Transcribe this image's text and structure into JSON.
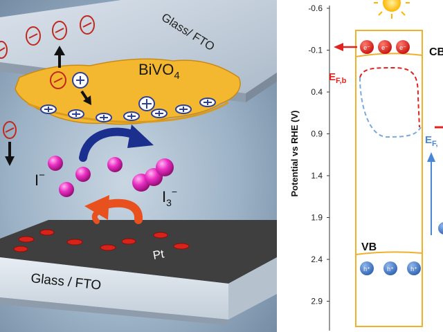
{
  "left_panel": {
    "top_glass_label": "Glass/ FTO",
    "bottom_glass_label": "Glass / FTO",
    "material_label": "BiVO",
    "material_subscript": "4",
    "iodide_label": "I",
    "iodide_charge": "−",
    "triiodide_label": "I",
    "triiodide_subscript": "3",
    "triiodide_charge": "−",
    "counter_electrode_label": "Pt",
    "electron_symbol": "−",
    "hole_symbol": "+"
  },
  "right_panel": {
    "y_axis_label": "Potential vs RHE (V)",
    "y_ticks": [
      "-0.6",
      "-0.1",
      "0.4",
      "0.9",
      "1.4",
      "1.9",
      "2.4",
      "2.9"
    ],
    "cb_label": "CB",
    "vb_label": "VB",
    "fermi_b_label": "E",
    "fermi_b_subscript": "F,b",
    "fermi_right_label": "E",
    "fermi_right_subscript": "F,",
    "electron_label": "e⁻",
    "hole_label": "h⁺",
    "colors": {
      "band_box": "#f0b02c",
      "electron": "#e0231e",
      "hole": "#3a78c8",
      "fermi_b": "#e0231e",
      "fermi_right": "#4a86d6"
    }
  }
}
